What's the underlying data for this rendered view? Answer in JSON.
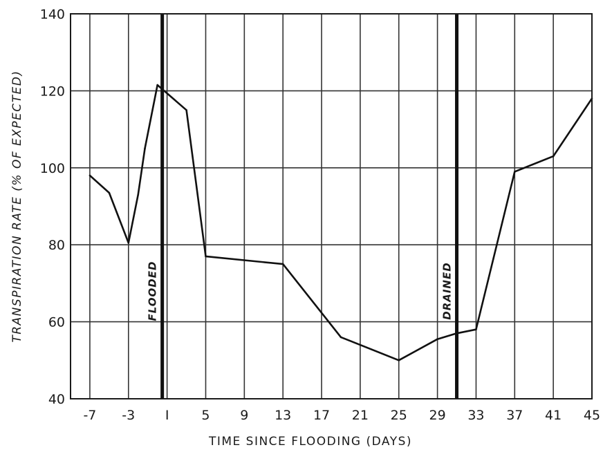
{
  "chart_data": {
    "type": "line",
    "title": "",
    "xlabel": "TIME SINCE FLOODING (DAYS)",
    "ylabel": "TRANSPIRATION RATE (% OF EXPECTED)",
    "xlim": [
      -9,
      45
    ],
    "ylim": [
      40,
      140
    ],
    "x_ticks": [
      -7,
      -3,
      1,
      5,
      9,
      13,
      17,
      21,
      25,
      29,
      33,
      37,
      41,
      45
    ],
    "x_tick_labels": [
      "-7",
      "-3",
      "I",
      "5",
      "9",
      "13",
      "17",
      "21",
      "25",
      "29",
      "33",
      "37",
      "41",
      "45"
    ],
    "y_ticks": [
      40,
      60,
      80,
      100,
      120,
      140
    ],
    "y_tick_labels": [
      "40",
      "60",
      "80",
      "100",
      "120",
      "140"
    ],
    "grid": true,
    "legend": "none",
    "line_color": "#111111",
    "series": [
      {
        "x": [
          -7,
          -5,
          -3,
          -2,
          -1.3,
          0,
          3,
          5,
          13,
          19,
          25,
          29,
          31,
          33,
          37,
          41,
          45
        ],
        "values": [
          98,
          93.5,
          80.5,
          93,
          105,
          121.5,
          115,
          77,
          75,
          56,
          50,
          55.5,
          57,
          58,
          99,
          103,
          118
        ]
      }
    ],
    "markers": [
      {
        "x": 0.5,
        "label": "FLOODED"
      },
      {
        "x": 31,
        "label": "DRAINED"
      }
    ]
  }
}
